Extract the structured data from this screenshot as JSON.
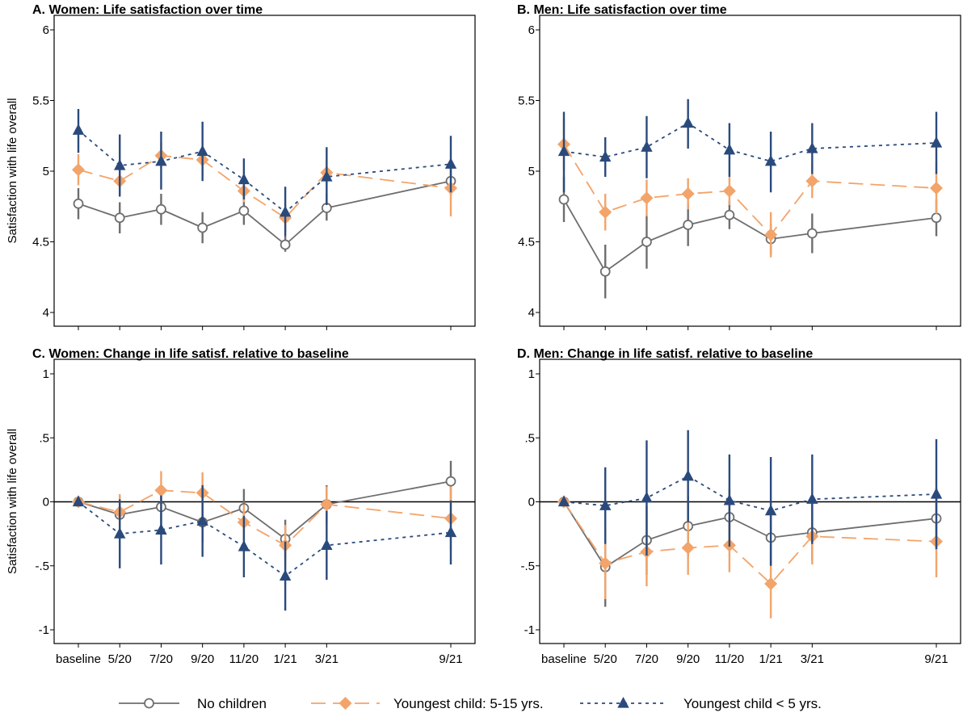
{
  "chart_data": [
    {
      "type": "line",
      "title": "A.  Women: Life satisfaction over time",
      "ylabel": "Satisfaction with life overall",
      "xlabel": "",
      "ylim": [
        4,
        6
      ],
      "yticks": [
        "4",
        "4.5",
        "5",
        "5.5",
        "6"
      ],
      "ytick_values": [
        4,
        4.5,
        5,
        5.5,
        6
      ],
      "categories": [
        "baseline",
        "5/20",
        "7/20",
        "9/20",
        "11/20",
        "1/21",
        "3/21",
        "9/21"
      ],
      "x_positions": [
        0,
        1,
        2,
        3,
        4,
        5,
        6,
        9
      ],
      "show_xticks": false,
      "zero_line": false,
      "series": [
        {
          "name": "No children",
          "values": [
            4.77,
            4.67,
            4.73,
            4.6,
            4.72,
            4.48,
            4.74,
            4.93
          ],
          "lo": [
            4.66,
            4.56,
            4.62,
            4.49,
            4.62,
            4.43,
            4.65,
            4.83
          ],
          "hi": [
            4.88,
            4.78,
            4.84,
            4.71,
            4.82,
            4.54,
            4.84,
            5.03
          ]
        },
        {
          "name": "Youngest child: 5-15 yrs.",
          "values": [
            5.01,
            4.93,
            5.11,
            5.08,
            4.86,
            4.67,
            4.99,
            4.88
          ],
          "lo": [
            4.9,
            4.84,
            5.02,
            4.97,
            4.78,
            4.57,
            4.9,
            4.68
          ],
          "hi": [
            5.12,
            5.03,
            5.2,
            5.18,
            4.94,
            4.77,
            5.08,
            5.08
          ]
        },
        {
          "name": "Youngest child < 5 yrs.",
          "values": [
            5.29,
            5.04,
            5.07,
            5.14,
            4.94,
            4.71,
            4.96,
            5.05
          ],
          "lo": [
            5.13,
            4.82,
            4.87,
            4.93,
            4.8,
            4.54,
            4.76,
            4.85
          ],
          "hi": [
            5.44,
            5.26,
            5.28,
            5.35,
            5.09,
            4.89,
            5.17,
            5.25
          ]
        }
      ]
    },
    {
      "type": "line",
      "title": "B.  Men: Life satisfaction over time",
      "ylabel": "",
      "xlabel": "",
      "ylim": [
        4,
        6
      ],
      "yticks": [
        "4",
        "4.5",
        "5",
        "5.5",
        "6"
      ],
      "ytick_values": [
        4,
        4.5,
        5,
        5.5,
        6
      ],
      "categories": [
        "baseline",
        "5/20",
        "7/20",
        "9/20",
        "11/20",
        "1/21",
        "3/21",
        "9/21"
      ],
      "x_positions": [
        0,
        1,
        2,
        3,
        4,
        5,
        6,
        9
      ],
      "show_xticks": false,
      "zero_line": false,
      "series": [
        {
          "name": "No children",
          "values": [
            4.8,
            4.29,
            4.5,
            4.62,
            4.69,
            4.52,
            4.56,
            4.67
          ],
          "lo": [
            4.64,
            4.1,
            4.31,
            4.47,
            4.59,
            4.41,
            4.42,
            4.54
          ],
          "hi": [
            4.96,
            4.48,
            4.69,
            4.77,
            4.79,
            4.63,
            4.7,
            4.8
          ]
        },
        {
          "name": "Youngest child: 5-15 yrs.",
          "values": [
            5.19,
            4.71,
            4.81,
            4.84,
            4.86,
            4.55,
            4.93,
            4.88
          ],
          "lo": [
            5.01,
            4.58,
            4.68,
            4.73,
            4.76,
            4.39,
            4.81,
            4.7
          ],
          "hi": [
            5.37,
            4.84,
            4.94,
            4.95,
            4.96,
            4.71,
            5.05,
            5.06
          ]
        },
        {
          "name": "Youngest child < 5 yrs.",
          "values": [
            5.14,
            5.1,
            5.17,
            5.34,
            5.15,
            5.07,
            5.16,
            5.2
          ],
          "lo": [
            4.85,
            4.96,
            4.95,
            5.16,
            4.96,
            4.85,
            4.98,
            4.98
          ],
          "hi": [
            5.42,
            5.24,
            5.39,
            5.51,
            5.34,
            5.28,
            5.34,
            5.42
          ]
        }
      ]
    },
    {
      "type": "line",
      "title": "C.  Women: Change in life satisf. relative to baseline",
      "ylabel": "Satisfaction with life overall",
      "xlabel": "",
      "ylim": [
        -1.1,
        1.1
      ],
      "yticks": [
        "-1",
        "-.5",
        "0",
        ".5",
        "1"
      ],
      "ytick_values": [
        -1,
        -0.5,
        0,
        0.5,
        1
      ],
      "categories": [
        "baseline",
        "5/20",
        "7/20",
        "9/20",
        "11/20",
        "1/21",
        "3/21",
        "9/21"
      ],
      "x_positions": [
        0,
        1,
        2,
        3,
        4,
        5,
        6,
        9
      ],
      "show_xticks": true,
      "zero_line": true,
      "series": [
        {
          "name": "No children",
          "values": [
            0,
            -0.1,
            -0.04,
            -0.16,
            -0.05,
            -0.29,
            -0.02,
            0.16
          ],
          "lo": [
            0,
            -0.25,
            -0.19,
            -0.32,
            -0.2,
            -0.44,
            -0.17,
            0.0
          ],
          "hi": [
            0,
            0.05,
            0.11,
            0.0,
            0.1,
            -0.14,
            0.13,
            0.32
          ]
        },
        {
          "name": "Youngest child: 5-15 yrs.",
          "values": [
            0,
            -0.08,
            0.09,
            0.07,
            -0.16,
            -0.34,
            -0.02,
            -0.13
          ],
          "lo": [
            0,
            -0.22,
            -0.06,
            -0.09,
            -0.3,
            -0.5,
            -0.16,
            -0.38
          ],
          "hi": [
            0,
            0.06,
            0.24,
            0.23,
            -0.02,
            -0.18,
            0.12,
            0.12
          ]
        },
        {
          "name": "Youngest child < 5 yrs.",
          "values": [
            0,
            -0.25,
            -0.22,
            -0.15,
            -0.35,
            -0.58,
            -0.34,
            -0.24
          ],
          "lo": [
            0,
            -0.52,
            -0.49,
            -0.43,
            -0.59,
            -0.85,
            -0.61,
            -0.49
          ],
          "hi": [
            0,
            0.02,
            0.05,
            0.13,
            -0.11,
            -0.31,
            -0.07,
            0.01
          ]
        }
      ]
    },
    {
      "type": "line",
      "title": "D.  Men: Change in life satisf. relative to baseline",
      "ylabel": "",
      "xlabel": "",
      "ylim": [
        -1.1,
        1.1
      ],
      "yticks": [
        "-1",
        "-.5",
        "0",
        ".5",
        "1"
      ],
      "ytick_values": [
        -1,
        -0.5,
        0,
        0.5,
        1
      ],
      "categories": [
        "baseline",
        "5/20",
        "7/20",
        "9/20",
        "11/20",
        "1/21",
        "3/21",
        "9/21"
      ],
      "x_positions": [
        0,
        1,
        2,
        3,
        4,
        5,
        6,
        9
      ],
      "show_xticks": true,
      "zero_line": true,
      "series": [
        {
          "name": "No children",
          "values": [
            0,
            -0.51,
            -0.3,
            -0.19,
            -0.12,
            -0.28,
            -0.24,
            -0.13
          ],
          "lo": [
            0,
            -0.82,
            -0.57,
            -0.43,
            -0.34,
            -0.49,
            -0.46,
            -0.37
          ],
          "hi": [
            0,
            -0.2,
            -0.03,
            0.05,
            0.1,
            -0.07,
            -0.02,
            0.11
          ]
        },
        {
          "name": "Youngest child: 5-15 yrs.",
          "values": [
            0,
            -0.48,
            -0.39,
            -0.36,
            -0.34,
            -0.64,
            -0.27,
            -0.31
          ],
          "lo": [
            0,
            -0.76,
            -0.66,
            -0.57,
            -0.55,
            -0.91,
            -0.49,
            -0.59
          ],
          "hi": [
            0,
            -0.2,
            -0.12,
            -0.15,
            -0.13,
            -0.37,
            -0.05,
            -0.03
          ]
        },
        {
          "name": "Youngest child < 5 yrs.",
          "values": [
            0,
            -0.03,
            0.03,
            0.2,
            0.01,
            -0.07,
            0.02,
            0.06
          ],
          "lo": [
            0,
            -0.33,
            -0.42,
            -0.16,
            -0.35,
            -0.5,
            -0.33,
            -0.37
          ],
          "hi": [
            0,
            0.27,
            0.48,
            0.56,
            0.37,
            0.35,
            0.37,
            0.49
          ]
        }
      ]
    }
  ],
  "legend": {
    "placement": "bottom",
    "items": [
      {
        "label": "No children",
        "marker": "hollow-circle",
        "line": "solid",
        "color": "#6e6e6e"
      },
      {
        "label": "Youngest child: 5-15 yrs.",
        "marker": "diamond",
        "line": "long-dash",
        "color": "#f2a46a"
      },
      {
        "label": "Youngest child < 5 yrs.",
        "marker": "triangle",
        "line": "dotted",
        "color": "#2a4a7c"
      }
    ]
  },
  "colors": {
    "no_children": "#6e6e6e",
    "youngest_5_15": "#f2a46a",
    "youngest_under_5": "#2a4a7c",
    "zero_line": "#000000",
    "frame": "#000000"
  }
}
